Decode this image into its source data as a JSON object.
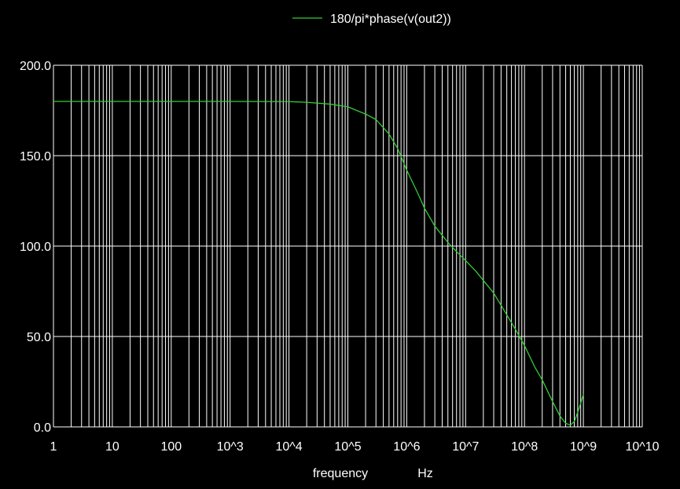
{
  "chart_data": {
    "type": "line",
    "title": "",
    "xlabel": "frequency",
    "xunit": "Hz",
    "ylabel": "",
    "x_scale": "log",
    "xlim": [
      1,
      10000000000
    ],
    "ylim": [
      0,
      200
    ],
    "x_ticks": [
      1,
      10,
      100,
      1000,
      10000,
      100000,
      1000000,
      10000000,
      100000000,
      1000000000,
      10000000000
    ],
    "x_tick_labels": [
      "1",
      "10",
      "100",
      "10^3",
      "10^4",
      "10^5",
      "10^6",
      "10^7",
      "10^8",
      "10^9",
      "10^10"
    ],
    "y_ticks": [
      0,
      50,
      100,
      150,
      200
    ],
    "y_tick_labels": [
      "0.0",
      "50.0",
      "100.0",
      "150.0",
      "200.0"
    ],
    "grid": true,
    "legend_position": "top-center",
    "colors": {
      "background": "#000000",
      "grid": "#ffffff",
      "text": "#ffffff",
      "series": "#33cc33"
    },
    "series": [
      {
        "name": "180/pi*phase(v(out2))",
        "x": [
          1,
          10,
          100,
          1000,
          10000,
          20000,
          50000,
          100000,
          200000,
          300000,
          500000,
          700000,
          1000000,
          1500000,
          2000000,
          3000000,
          5000000,
          7000000,
          10000000,
          15000000,
          20000000,
          30000000,
          50000000,
          70000000,
          100000000,
          150000000,
          200000000,
          300000000,
          400000000,
          500000000,
          600000000,
          700000000,
          800000000,
          900000000,
          1000000000
        ],
        "y": [
          180,
          180,
          180,
          180,
          179.9,
          179.5,
          178.5,
          177,
          173,
          170,
          162,
          154,
          142,
          130,
          121,
          111,
          102,
          97,
          92,
          86,
          81,
          74,
          62,
          54,
          45,
          33,
          26,
          14,
          6,
          2,
          1,
          3,
          8,
          13,
          18
        ]
      }
    ]
  }
}
